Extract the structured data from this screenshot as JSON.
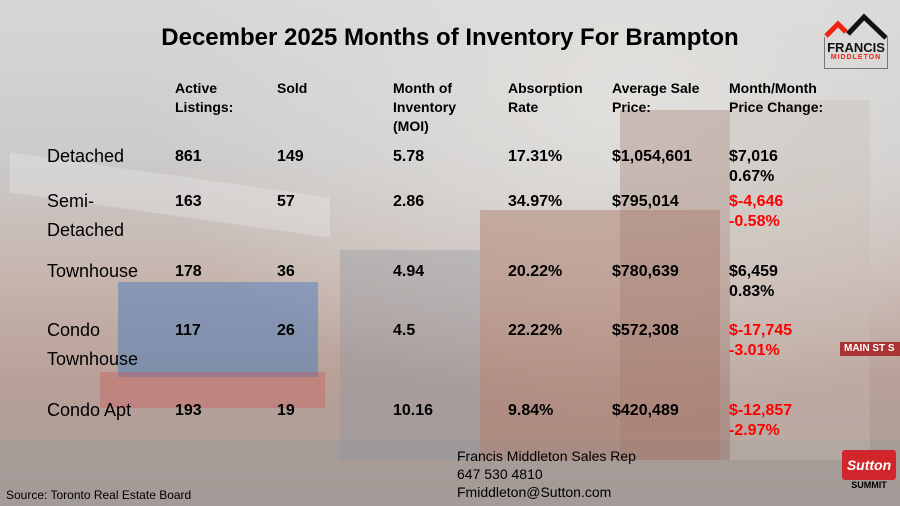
{
  "title": "December 2025 Months of Inventory For Brampton",
  "headers": [
    "Active\nListings:",
    "Sold",
    "Month of\nInventory\n(MOI)",
    "Absorption\nRate",
    "Average Sale\nPrice:",
    "Month/Month\nPrice Change:"
  ],
  "header_lines": {
    "active": [
      "Active",
      "Listings:"
    ],
    "sold": [
      "Sold"
    ],
    "moi": [
      "Month of",
      "Inventory",
      "(MOI)"
    ],
    "absorption": [
      "Absorption",
      "Rate"
    ],
    "price": [
      "Average Sale",
      "Price:"
    ],
    "change": [
      "Month/Month",
      "Price Change:"
    ]
  },
  "rows": [
    {
      "type": [
        "Detached"
      ],
      "active": "861",
      "sold": "149",
      "moi": "5.78",
      "absorption": "17.31%",
      "price": "$1,054,601",
      "change_amount": "$7,016",
      "change_pct": "0.67%",
      "negative": false
    },
    {
      "type": [
        "Semi-",
        "Detached"
      ],
      "active": "163",
      "sold": "57",
      "moi": "2.86",
      "absorption": "34.97%",
      "price": "$795,014",
      "change_amount": "$-4,646",
      "change_pct": "-0.58%",
      "negative": true
    },
    {
      "type": [
        "Townhouse"
      ],
      "active": "178",
      "sold": "36",
      "moi": "4.94",
      "absorption": "20.22%",
      "price": "$780,639",
      "change_amount": "$6,459",
      "change_pct": "0.83%",
      "negative": false
    },
    {
      "type": [
        "Condo",
        "Townhouse"
      ],
      "active": "117",
      "sold": "26",
      "moi": "4.5",
      "absorption": "22.22%",
      "price": "$572,308",
      "change_amount": "$-17,745",
      "change_pct": "-3.01%",
      "negative": true
    },
    {
      "type": [
        "Condo Apt"
      ],
      "active": "193",
      "sold": "19",
      "moi": "10.16",
      "absorption": "9.84%",
      "price": "$420,489",
      "change_amount": "$-12,857",
      "change_pct": "-2.97%",
      "negative": true
    }
  ],
  "source": "Source: Toronto Real Estate Board",
  "contact": {
    "name": "Francis Middleton Sales Rep",
    "phone": "647 530 4810",
    "email": "Fmiddleton@Sutton.com"
  },
  "logo": {
    "name": "FRANCIS",
    "sub": "MIDDLETON"
  },
  "brokerage": {
    "name": "Sutton",
    "sub": "SUMMIT"
  },
  "street_sign": "MAIN ST S",
  "colors": {
    "negative": "#ff0000",
    "positive": "#000000",
    "brand_red": "#d2262c"
  }
}
